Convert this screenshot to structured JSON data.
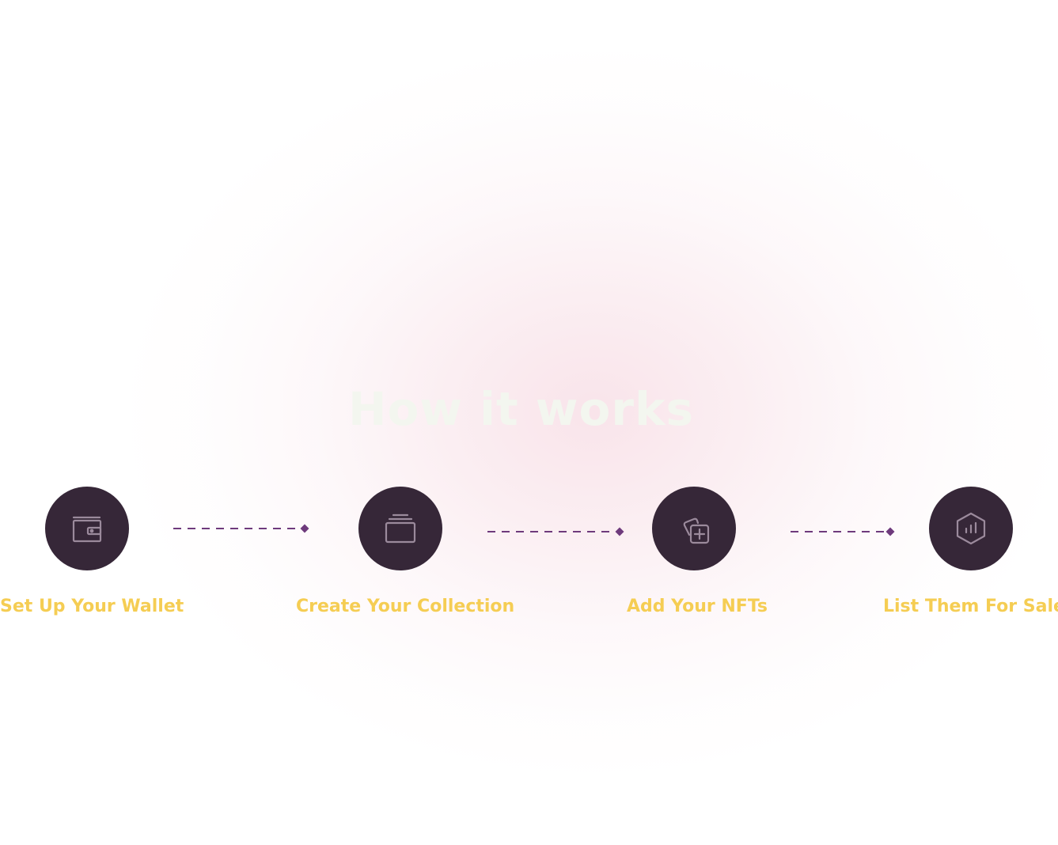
{
  "section": {
    "title": "How it works"
  },
  "steps": [
    {
      "label": "Set Up Your Wallet",
      "icon": "wallet-icon"
    },
    {
      "label": "Create Your Collection",
      "icon": "collection-icon"
    },
    {
      "label": "Add Your NFTs",
      "icon": "add-nft-icon"
    },
    {
      "label": "List Them For Sale",
      "icon": "chart-hexagon-icon"
    }
  ],
  "colors": {
    "circle": "#362738",
    "label": "#f5cd53",
    "connector": "#6e3a7c",
    "title": "#f3f6ef",
    "icon_stroke": "#9b8a9c"
  }
}
